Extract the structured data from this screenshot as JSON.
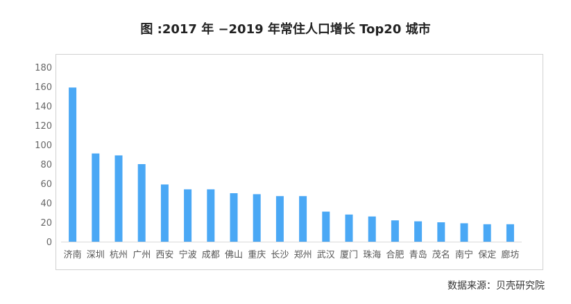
{
  "chart_data": {
    "type": "bar",
    "title": "图 :2017 年 −2019 年常住人口增长 Top20 城市",
    "categories": [
      "济南",
      "深圳",
      "杭州",
      "广州",
      "西安",
      "宁波",
      "成都",
      "佛山",
      "重庆",
      "长沙",
      "郑州",
      "武汉",
      "厦门",
      "珠海",
      "合肥",
      "青岛",
      "茂名",
      "南宁",
      "保定",
      "廊坊"
    ],
    "values": [
      159,
      91,
      89,
      80,
      59,
      54,
      54,
      50,
      49,
      47,
      47,
      31,
      28,
      26,
      22,
      21,
      20,
      19,
      18,
      18
    ],
    "ylim": [
      0,
      180
    ],
    "yticks": [
      0,
      20,
      40,
      60,
      80,
      100,
      120,
      140,
      160,
      180
    ],
    "grid": false,
    "bar_color": "#4aa8f5",
    "xlabel": "",
    "ylabel": ""
  },
  "source": "数据来源：贝壳研究院"
}
